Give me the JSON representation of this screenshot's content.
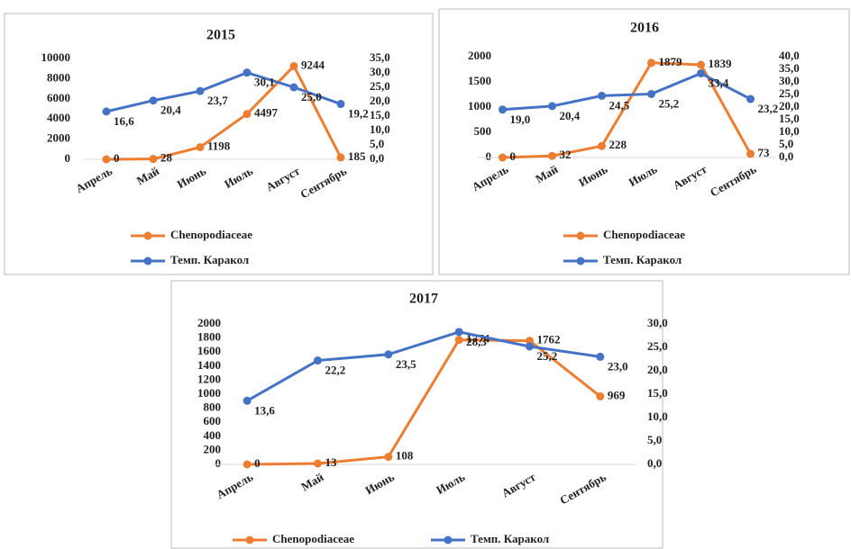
{
  "chart_data": [
    {
      "type": "line",
      "title": "2015",
      "categories": [
        "Апрель",
        "Май",
        "Июнь",
        "Июль",
        "Август",
        "Сентябрь"
      ],
      "series": [
        {
          "name": "Chenopodiaceae",
          "color": "#ed7d31",
          "values": [
            0,
            28,
            1198,
            4497,
            9244,
            185
          ]
        },
        {
          "name": "Темп. Каракол",
          "color": "#4472c4",
          "axis": "y2",
          "values": [
            16.6,
            20.4,
            23.7,
            30.1,
            25.0,
            19.2
          ],
          "value_labels": [
            "16,6",
            "20,4",
            "23,7",
            "30,1",
            "25,0",
            "19,2"
          ]
        }
      ],
      "ylim": [
        0,
        10000
      ],
      "yticks": [
        0,
        2000,
        4000,
        6000,
        8000,
        10000
      ],
      "y2lim": [
        0,
        35
      ],
      "y2ticks": [
        {
          "value": 0,
          "label": "0,0"
        },
        {
          "value": 5,
          "label": "5,0"
        },
        {
          "value": 10,
          "label": "10,0"
        },
        {
          "value": 15,
          "label": "15,0"
        },
        {
          "value": 20,
          "label": "20,0"
        },
        {
          "value": 25,
          "label": "25,0"
        },
        {
          "value": 30,
          "label": "30,0"
        },
        {
          "value": 35,
          "label": "35,0"
        }
      ],
      "legend": "bottom"
    },
    {
      "type": "line",
      "title": "2016",
      "categories": [
        "Апрель",
        "Май",
        "Июнь",
        "Июль",
        "Август",
        "Сентябрь"
      ],
      "series": [
        {
          "name": "Chenopodiaceae",
          "color": "#ed7d31",
          "values": [
            0,
            32,
            228,
            1879,
            1839,
            73
          ]
        },
        {
          "name": "Темп. Каракол",
          "color": "#4472c4",
          "axis": "y2",
          "values": [
            19.0,
            20.4,
            24.5,
            25.2,
            33.4,
            23.2
          ],
          "value_labels": [
            "19,0",
            "20,4",
            "24,5",
            "25,2",
            "33,4",
            "23,2"
          ]
        }
      ],
      "ylim": [
        0,
        2000
      ],
      "yticks": [
        0,
        500,
        1000,
        1500,
        2000
      ],
      "y2lim": [
        0,
        40
      ],
      "y2ticks": [
        {
          "value": 0,
          "label": "0,0"
        },
        {
          "value": 5,
          "label": "5,0"
        },
        {
          "value": 10,
          "label": "10,0"
        },
        {
          "value": 15,
          "label": "15,0"
        },
        {
          "value": 20,
          "label": "20,0"
        },
        {
          "value": 25,
          "label": "25,0"
        },
        {
          "value": 30,
          "label": "30,0"
        },
        {
          "value": 35,
          "label": "35,0"
        },
        {
          "value": 40,
          "label": "40,0"
        }
      ],
      "legend": "bottom"
    },
    {
      "type": "line",
      "title": "2017",
      "categories": [
        "Апрель",
        "Май",
        "Июнь",
        "Июль",
        "Август",
        "Сентябрь"
      ],
      "series": [
        {
          "name": "Chenopodiaceae",
          "color": "#ed7d31",
          "values": [
            0,
            13,
            108,
            1774,
            1762,
            969
          ]
        },
        {
          "name": "Темп. Каракол",
          "color": "#4472c4",
          "axis": "y2",
          "values": [
            13.6,
            22.2,
            23.5,
            28.3,
            25.2,
            23.0
          ],
          "value_labels": [
            "13,6",
            "22,2",
            "23,5",
            "28,3",
            "25,2",
            "23,0"
          ]
        }
      ],
      "ylim": [
        0,
        2000
      ],
      "yticks": [
        0,
        200,
        400,
        600,
        800,
        1000,
        1200,
        1400,
        1600,
        1800,
        2000
      ],
      "y2lim": [
        0,
        30
      ],
      "y2ticks": [
        {
          "value": 0,
          "label": "0,0"
        },
        {
          "value": 5,
          "label": "5,0"
        },
        {
          "value": 10,
          "label": "10,0"
        },
        {
          "value": 15,
          "label": "15,0"
        },
        {
          "value": 20,
          "label": "20,0"
        },
        {
          "value": 25,
          "label": "25,0"
        },
        {
          "value": 30,
          "label": "30,0"
        }
      ],
      "legend": "bottom"
    }
  ]
}
